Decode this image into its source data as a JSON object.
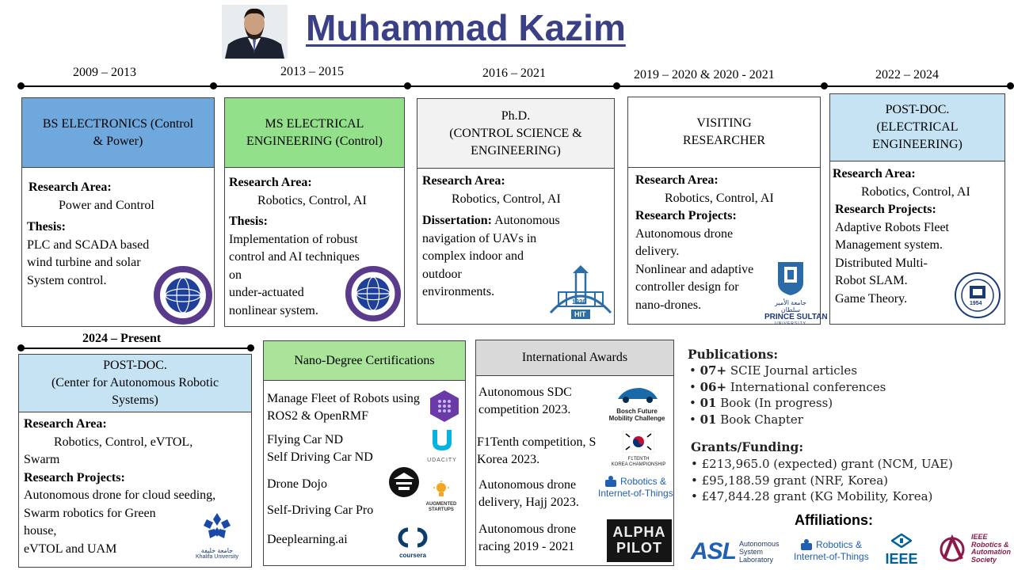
{
  "header": {
    "name": "Muhammad Kazim"
  },
  "timeline": [
    "2009 – 2013",
    "2013 – 2015",
    "2016 – 2021",
    "2019 – 2020 & 2020 - 2021",
    "2022 – 2024",
    "2024 – Present"
  ],
  "degrees": [
    {
      "title_lines": [
        "BS ELECTRONICS (Control",
        "& Power)"
      ],
      "area_label": "Research Area:",
      "area": "Power and Control",
      "thesis_label": "Thesis:",
      "thesis_lines": [
        "PLC and SCADA based",
        "wind turbine and solar",
        "System control."
      ],
      "logo": "COMSATS UNIVERSITY"
    },
    {
      "title_lines": [
        "MS ELECTRICAL",
        "ENGINEERING (Control)"
      ],
      "area_label": "Research Area:",
      "area": "Robotics, Control, AI",
      "thesis_label": "Thesis:",
      "thesis_lines": [
        "Implementation of robust",
        "control and AI techniques",
        "on",
        "under-actuated",
        "nonlinear system."
      ],
      "logo": "COMSATS UNIVERSITY"
    },
    {
      "title_lines": [
        "Ph.D.",
        "(CONTROL SCIENCE &",
        "ENGINEERING)"
      ],
      "area_label": "Research Area:",
      "area": "Robotics, Control, AI",
      "thesis_label": "Dissertation:",
      "thesis_first": "Autonomous",
      "thesis_lines": [
        "navigation of UAVs in",
        "complex indoor and",
        "outdoor",
        "environments."
      ],
      "logo": "HIT",
      "logo_year": "1920"
    },
    {
      "title_lines": [
        "VISITING",
        "RESEARCHER"
      ],
      "area_label": "Research Area:",
      "area": "Robotics, Control, AI",
      "thesis_label": "Research Projects:",
      "thesis_lines": [
        "Autonomous drone",
        "delivery.",
        "Nonlinear and adaptive",
        "controller design for",
        "nano-drones."
      ],
      "logo": "PRINCE SULTAN",
      "logo_sub": "UNIVERSITY",
      "logo_arabic": "جامعة الأمير سلطان"
    },
    {
      "title_lines": [
        "POST-DOC.",
        "(ELECTRICAL",
        "ENGINEERING)"
      ],
      "area_label": "Research Area:",
      "area": "Robotics, Control, AI",
      "thesis_label": "Research Projects:",
      "thesis_lines": [
        "Adaptive Robots Fleet",
        "Management system.",
        "Distributed Multi-",
        "Robot SLAM.",
        "Game Theory."
      ],
      "logo": "INHA UNIVERSITY",
      "logo_year": "1954"
    },
    {
      "title_lines": [
        "POST-DOC.",
        "(Center for Autonomous Robotic",
        "Systems)"
      ],
      "area_label": "Research Area:",
      "area_lines": [
        "Robotics, Control, eVTOL,",
        "Swarm"
      ],
      "thesis_label": "Research Projects:",
      "thesis_lines": [
        "Autonomous drone for cloud seeding,",
        "Swarm robotics for Green",
        "house,",
        "eVTOL and UAM"
      ],
      "logo": "Khalifa University",
      "logo_arabic": "جامعة خليفة"
    }
  ],
  "nano": {
    "title": "Nano-Degree Certifications",
    "items": [
      "Manage Fleet of Robots using",
      "ROS2 & OpenRMF",
      "Flying Car ND",
      "Self Driving Car ND",
      "Drone Dojo",
      "Self-Driving Car Pro",
      "Deeplearning.ai"
    ],
    "logos": [
      "UDACITY",
      "AUGMENTED",
      "STARTUPS",
      "coursera"
    ]
  },
  "awards": {
    "title": "International Awards",
    "items": [
      [
        "Autonomous SDC",
        "competition 2023."
      ],
      [
        "F1Tenth competition, S",
        "Korea 2023."
      ],
      [
        "Autonomous drone",
        "delivery, Hajj 2023."
      ],
      [
        "Autonomous drone",
        "racing 2019 - 2021"
      ]
    ],
    "logos": [
      "Bosch Future",
      "Mobility Challenge",
      "F1TENTH",
      "KOREA CHAMPIONSHIP",
      "Robotics &",
      "Internet-of-Things",
      "ALPHA",
      "PILOT"
    ]
  },
  "publications": {
    "title": "Publications:",
    "items": [
      [
        "07+",
        "SCIE Journal articles"
      ],
      [
        "06+",
        "International conferences"
      ],
      [
        "01",
        "Book (In progress)"
      ],
      [
        "01",
        "Book Chapter"
      ]
    ]
  },
  "grants": {
    "title": "Grants/Funding:",
    "items": [
      "£213,965.0 (expected) grant (NCM, UAE)",
      "£95,188.59 grant (NRF, Korea)",
      "£47,844.28 grant (KG Mobility, Korea)"
    ]
  },
  "affiliations": {
    "title": "Affiliations:",
    "asl": "ASL",
    "asl_lines": [
      "Autonomous",
      "System",
      "Laboratory"
    ],
    "iot": [
      "Robotics &",
      "Internet-of-Things"
    ],
    "ieee": "IEEE",
    "ras_lines": [
      "IEEE",
      "Robotics &",
      "Automation",
      "Society"
    ]
  },
  "colors": {
    "title": "#3b3f86",
    "bs": "#6fa8dc",
    "ms": "#93e08a",
    "phd": "#f2f2f2",
    "visiting": "#ffffff",
    "postdoc": "#c5e3f3",
    "accent_blue": "#1f5fb4",
    "ras": "#8b1a4a"
  }
}
